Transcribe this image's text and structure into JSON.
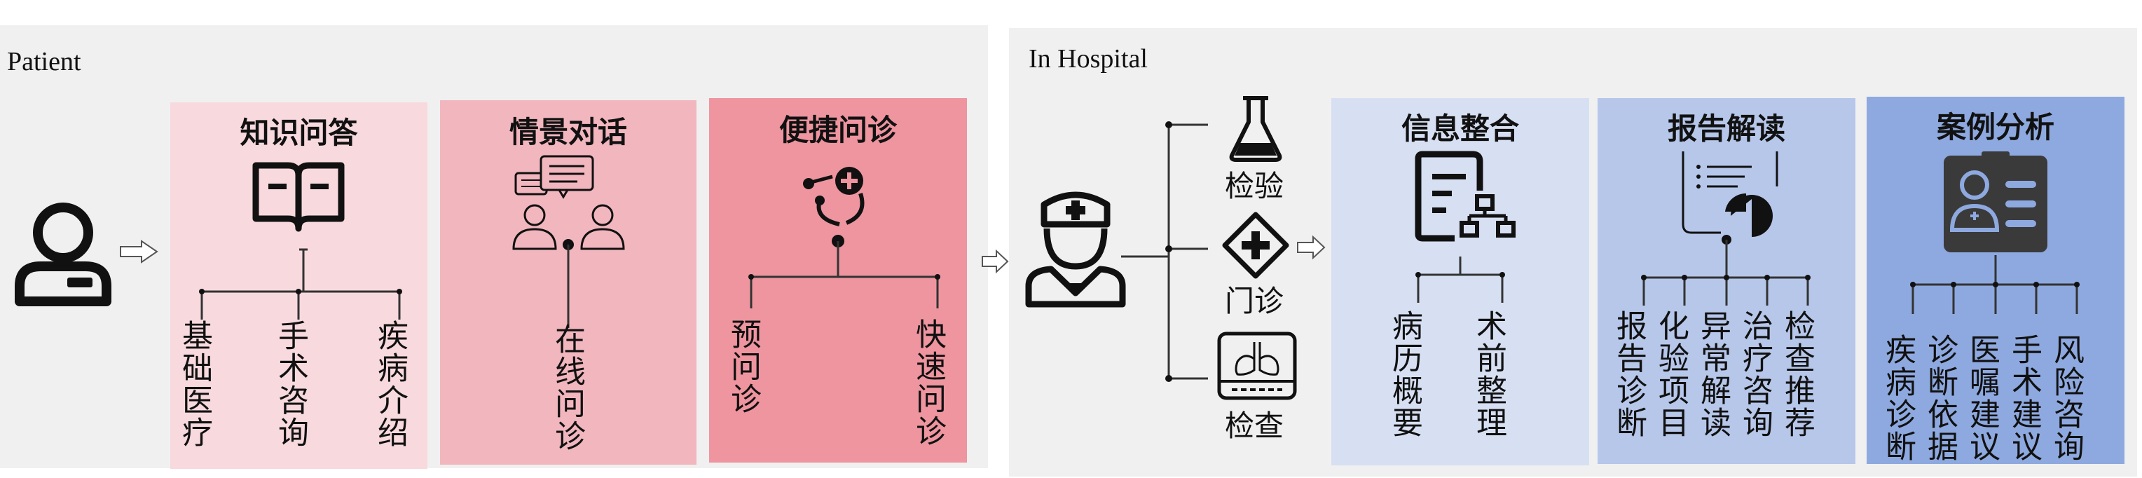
{
  "patient": {
    "title": "Patient",
    "panels": [
      {
        "title": "知识问答",
        "color": "#f7d9de",
        "items": [
          "基础医疗",
          "手术咨询",
          "疾病介绍"
        ]
      },
      {
        "title": "情景对话",
        "color": "#f2b6be",
        "items": [
          "在线问诊"
        ]
      },
      {
        "title": "便捷问诊",
        "color": "#ee959f",
        "items": [
          "预问诊",
          "快速问诊"
        ]
      }
    ]
  },
  "hospital": {
    "title": "In Hospital",
    "branches": [
      "检验",
      "门诊",
      "检查"
    ],
    "panels": [
      {
        "title": "信息整合",
        "color": "#d7e0f3",
        "items": [
          "病历概要",
          "术前整理"
        ]
      },
      {
        "title": "报告解读",
        "color": "#b6c7ea",
        "items": [
          "报告诊断",
          "化验项目",
          "异常解读",
          "治疗咨询",
          "检查推荐"
        ]
      },
      {
        "title": "案例分析",
        "color": "#8ea9df",
        "items": [
          "疾病诊断",
          "诊断依据",
          "医嘱建议",
          "手术建议",
          "风险咨询"
        ]
      }
    ]
  },
  "icons": [
    "person-icon",
    "book-icon",
    "dialogue-icon",
    "consult-icon",
    "doctor-icon",
    "flask-icon",
    "clinic-icon",
    "lungs-icon",
    "info-icon",
    "report-icon",
    "case-icon"
  ]
}
